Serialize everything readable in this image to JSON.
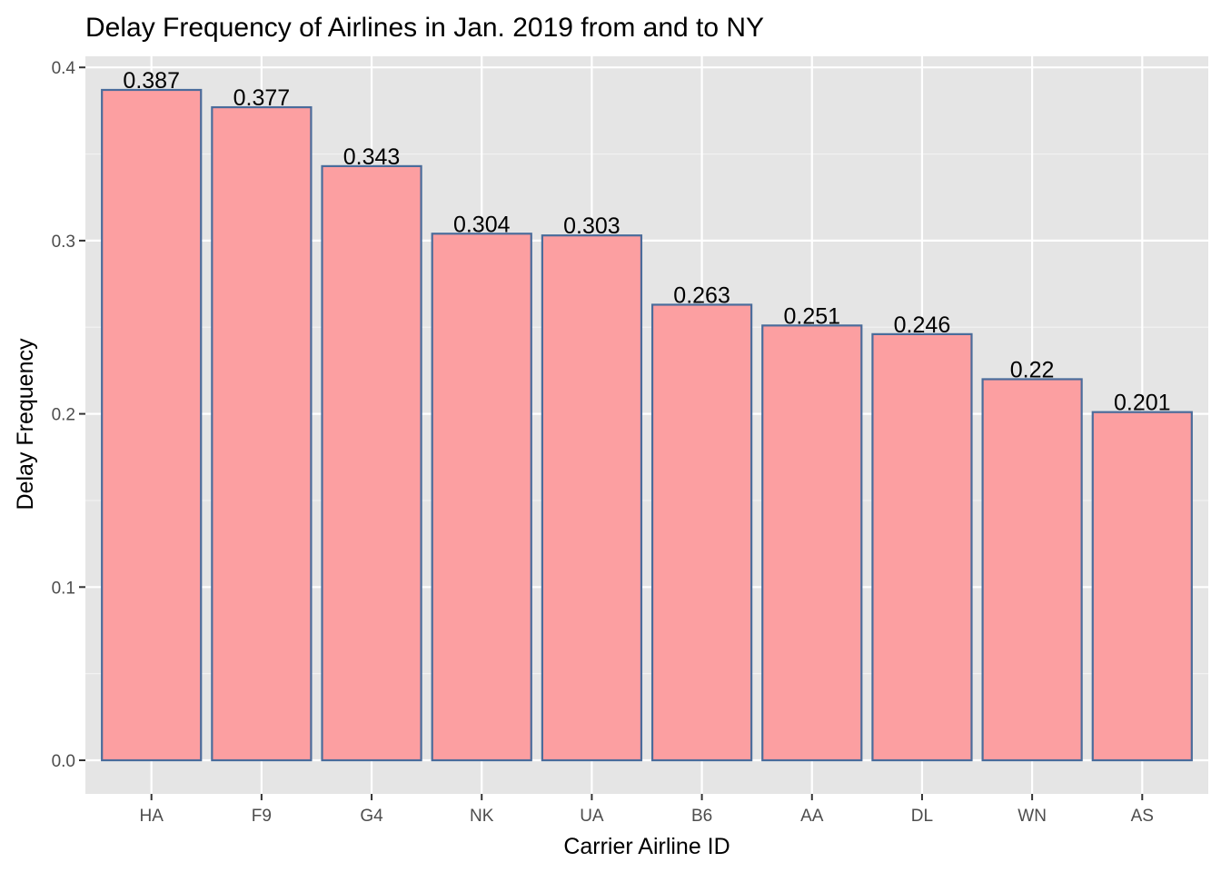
{
  "chart_data": {
    "type": "bar",
    "title": "Delay Frequency of Airlines in Jan. 2019 from and to NY",
    "xlabel": "Carrier Airline ID",
    "ylabel": "Delay Frequency",
    "categories": [
      "HA",
      "F9",
      "G4",
      "NK",
      "UA",
      "B6",
      "AA",
      "DL",
      "WN",
      "AS"
    ],
    "values": [
      0.387,
      0.377,
      0.343,
      0.304,
      0.303,
      0.263,
      0.251,
      0.246,
      0.22,
      0.201
    ],
    "data_labels": [
      "0.387",
      "0.377",
      "0.343",
      "0.304",
      "0.303",
      "0.263",
      "0.251",
      "0.246",
      "0.22",
      "0.201"
    ],
    "ylim": [
      -0.0194,
      0.4064
    ],
    "yticks": [
      0,
      0.1,
      0.2,
      0.3,
      0.4
    ],
    "ytick_labels": [
      "0.0",
      "0.1",
      "0.2",
      "0.3",
      "0.4"
    ],
    "grid": true,
    "legend": "none",
    "colors": {
      "bar_fill": "#fc9fa1",
      "bar_stroke": "#4a6c9b",
      "panel_background": "#e5e5e5",
      "grid_major": "#ffffff",
      "grid_minor": "#f2f2f2"
    }
  }
}
